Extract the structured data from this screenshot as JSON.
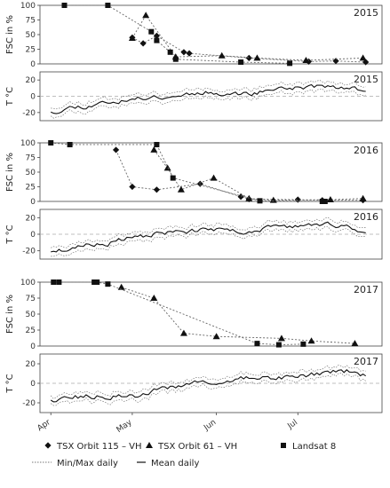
{
  "x_axis": {
    "ticks": [
      {
        "label": "Apr",
        "date": "2015-04-01"
      },
      {
        "label": "May",
        "date": "2015-05-01"
      },
      {
        "label": "Jun",
        "date": "2015-06-01"
      },
      {
        "label": "Jul",
        "date": "2015-07-01"
      }
    ],
    "range": [
      "2015-03-28",
      "2015-08-01"
    ]
  },
  "legend": {
    "items": [
      {
        "label": "TSX  Orbit 115 – VH",
        "symbol": "diamond"
      },
      {
        "label": "TSX Orbit 61 – VH",
        "symbol": "triangle"
      },
      {
        "label": "Landsat 8",
        "symbol": "square"
      },
      {
        "label": "Min/Max daily",
        "symbol": "dotted-line"
      },
      {
        "label": "Mean daily",
        "symbol": "solid-line"
      }
    ]
  },
  "colors": {
    "ink": "#111111",
    "minmax": "#777777",
    "zero_line": "#aaaaaa",
    "frame": "#444444"
  },
  "chart_data": [
    {
      "type": "scatter",
      "panel_label": "2015",
      "ylabel": "FSC in %",
      "ylim": [
        0,
        100
      ],
      "yticks": [
        0,
        25,
        50,
        75,
        100
      ],
      "series": [
        {
          "name": "TSX  Orbit 115 – VH",
          "marker": "diamond",
          "x": [
            "2015-05-01",
            "2015-05-05",
            "2015-05-10",
            "2015-05-20",
            "2015-05-22",
            "2015-06-13",
            "2015-07-05",
            "2015-07-15",
            "2015-07-26"
          ],
          "y": [
            45,
            35,
            48,
            20,
            18,
            10,
            4,
            5,
            3
          ]
        },
        {
          "name": "TSX Orbit 61 – VH",
          "marker": "triangle",
          "x": [
            "2015-05-01",
            "2015-05-06",
            "2015-05-17",
            "2015-06-03",
            "2015-06-16",
            "2015-07-04",
            "2015-07-25"
          ],
          "y": [
            44,
            83,
            12,
            14,
            10,
            6,
            10
          ]
        },
        {
          "name": "Landsat 8",
          "marker": "square",
          "x": [
            "2015-04-06",
            "2015-04-22",
            "2015-05-08",
            "2015-05-10",
            "2015-05-15",
            "2015-05-17",
            "2015-06-10",
            "2015-06-28"
          ],
          "y": [
            100,
            100,
            55,
            40,
            20,
            8,
            3,
            1
          ]
        }
      ]
    },
    {
      "type": "line",
      "panel_label": "2015",
      "ylabel": "T °C",
      "ylim": [
        -30,
        30
      ],
      "yticks": [
        -20,
        0,
        20
      ],
      "seed": 11,
      "mean_knots": [
        [
          "2015-04-01",
          -18
        ],
        [
          "2015-04-12",
          -12
        ],
        [
          "2015-04-25",
          -6
        ],
        [
          "2015-05-12",
          0
        ],
        [
          "2015-05-28",
          5
        ],
        [
          "2015-06-12",
          3
        ],
        [
          "2015-06-25",
          10
        ],
        [
          "2015-07-10",
          12
        ],
        [
          "2015-07-26",
          8
        ]
      ],
      "band": 4,
      "series": [
        {
          "name": "Mean daily"
        },
        {
          "name": "Min/Max daily"
        }
      ]
    },
    {
      "type": "scatter",
      "panel_label": "2016",
      "ylabel": "FSC in %",
      "ylim": [
        0,
        100
      ],
      "yticks": [
        0,
        25,
        50,
        75,
        100
      ],
      "series": [
        {
          "name": "TSX  Orbit 115 – VH",
          "marker": "diamond",
          "x": [
            "2016-04-25",
            "2016-05-01",
            "2016-05-10",
            "2016-05-26",
            "2016-06-10",
            "2016-06-13",
            "2016-07-01",
            "2016-07-10",
            "2016-07-25"
          ],
          "y": [
            88,
            25,
            20,
            30,
            8,
            4,
            3,
            2,
            2
          ]
        },
        {
          "name": "TSX Orbit 61 – VH",
          "marker": "triangle",
          "x": [
            "2016-05-09",
            "2016-05-14",
            "2016-05-19",
            "2016-05-31",
            "2016-06-13",
            "2016-06-22",
            "2016-07-13",
            "2016-07-25"
          ],
          "y": [
            88,
            57,
            20,
            40,
            5,
            2,
            3,
            5
          ]
        },
        {
          "name": "Landsat 8",
          "marker": "square",
          "x": [
            "2016-04-01",
            "2016-04-08",
            "2016-05-10",
            "2016-05-16",
            "2016-06-17",
            "2016-07-10",
            "2016-07-11"
          ],
          "y": [
            100,
            97,
            97,
            40,
            1,
            0,
            0
          ]
        }
      ]
    },
    {
      "type": "line",
      "panel_label": "2016",
      "ylabel": "T °C",
      "ylim": [
        -30,
        30
      ],
      "yticks": [
        -20,
        0,
        20
      ],
      "seed": 23,
      "mean_knots": [
        [
          "2016-04-01",
          -20
        ],
        [
          "2016-04-18",
          -12
        ],
        [
          "2016-05-01",
          -5
        ],
        [
          "2016-05-12",
          2
        ],
        [
          "2016-05-30",
          5
        ],
        [
          "2016-06-12",
          4
        ],
        [
          "2016-06-26",
          9
        ],
        [
          "2016-07-12",
          12
        ],
        [
          "2016-07-26",
          5
        ]
      ],
      "band": 4,
      "series": [
        {
          "name": "Mean daily"
        },
        {
          "name": "Min/Max daily"
        }
      ]
    },
    {
      "type": "scatter",
      "panel_label": "2017",
      "ylabel": "FSC in %",
      "ylim": [
        0,
        100
      ],
      "yticks": [
        0,
        25,
        50,
        75,
        100
      ],
      "series": [
        {
          "name": "TSX  Orbit 115 – VH",
          "marker": "diamond",
          "x": [],
          "y": []
        },
        {
          "name": "TSX Orbit 61 – VH",
          "marker": "triangle",
          "x": [
            "2017-04-27",
            "2017-05-09",
            "2017-05-20",
            "2017-06-01",
            "2017-06-25",
            "2017-07-06",
            "2017-07-22"
          ],
          "y": [
            92,
            75,
            20,
            15,
            12,
            8,
            4
          ]
        },
        {
          "name": "Landsat 8",
          "marker": "square",
          "x": [
            "2017-04-02",
            "2017-04-04",
            "2017-04-17",
            "2017-04-18",
            "2017-04-22",
            "2017-06-16",
            "2017-06-24",
            "2017-07-03"
          ],
          "y": [
            100,
            100,
            100,
            100,
            97,
            4,
            2,
            3
          ]
        }
      ]
    },
    {
      "type": "line",
      "panel_label": "2017",
      "ylabel": "T °C",
      "ylim": [
        -30,
        30
      ],
      "yticks": [
        -20,
        0,
        20
      ],
      "seed": 37,
      "mean_knots": [
        [
          "2017-04-01",
          -16
        ],
        [
          "2017-04-15",
          -14
        ],
        [
          "2017-04-30",
          -13
        ],
        [
          "2017-05-20",
          -2
        ],
        [
          "2017-06-05",
          3
        ],
        [
          "2017-06-20",
          6
        ],
        [
          "2017-07-05",
          9
        ],
        [
          "2017-07-18",
          12
        ],
        [
          "2017-07-26",
          9
        ]
      ],
      "band": 3,
      "series": [
        {
          "name": "Mean daily"
        },
        {
          "name": "Min/Max daily"
        }
      ]
    }
  ]
}
